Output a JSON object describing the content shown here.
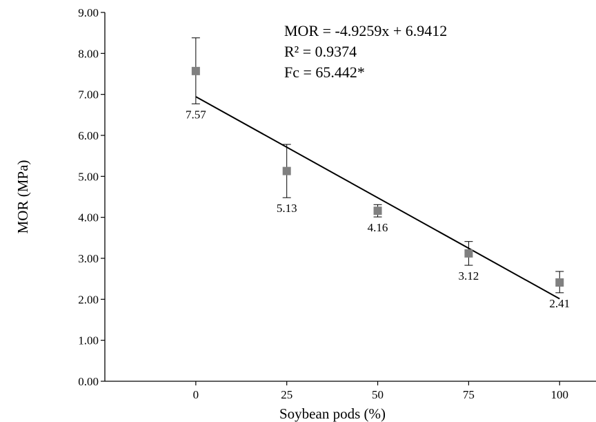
{
  "chart_data": {
    "type": "scatter",
    "title": "",
    "xlabel": "Soybean pods (%)",
    "ylabel": "MOR (MPa)",
    "x": [
      0,
      25,
      50,
      75,
      100
    ],
    "x_tick_labels": [
      "0",
      "25",
      "50",
      "75",
      "100"
    ],
    "xlim": [
      -25,
      110
    ],
    "ylim": [
      0,
      9
    ],
    "y_tick_labels": [
      "0.00",
      "1.00",
      "2.00",
      "3.00",
      "4.00",
      "5.00",
      "6.00",
      "7.00",
      "8.00",
      "9.00"
    ],
    "series": [
      {
        "values": [
          7.57,
          5.13,
          4.16,
          3.12,
          2.41
        ],
        "error_low": [
          6.77,
          4.48,
          4.01,
          2.83,
          2.16
        ],
        "error_high": [
          8.38,
          5.78,
          4.31,
          3.41,
          2.68
        ],
        "data_labels": [
          "7.57",
          "5.13",
          "4.16",
          "3.12",
          "2.41"
        ],
        "marker_color": "#808080"
      }
    ],
    "trendline": {
      "slope": -4.9259,
      "intercept": 6.9412,
      "equation_lines": [
        "MOR = -4.9259x + 6.9412",
        "R² = 0.9374",
        "Fc = 65.442*"
      ],
      "color": "#000000"
    },
    "grid": false,
    "legend": "none"
  }
}
